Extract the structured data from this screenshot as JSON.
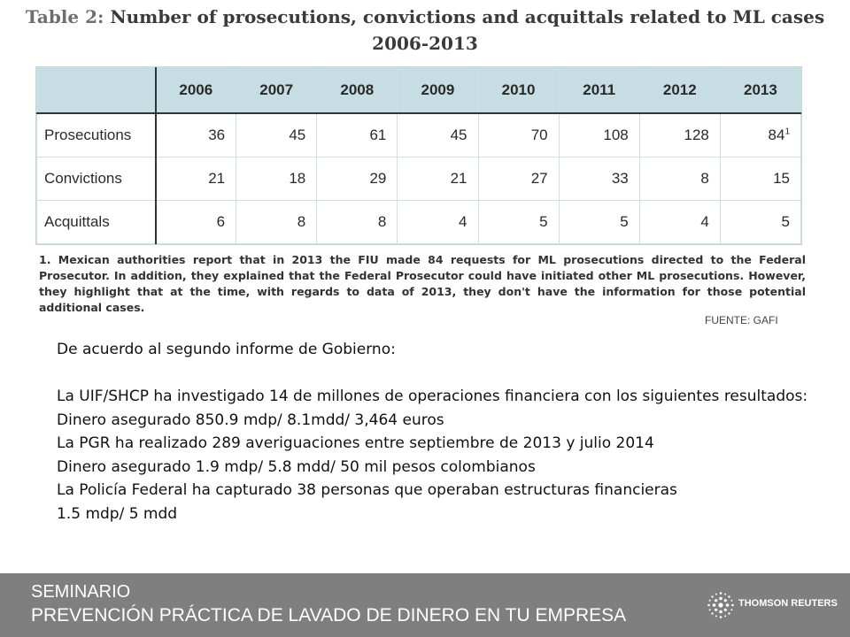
{
  "title": {
    "label": "Table 2:",
    "main": "Number of prosecutions, convictions and acquittals related to ML cases",
    "years": "2006-2013"
  },
  "table": {
    "headers": [
      "",
      "2006",
      "2007",
      "2008",
      "2009",
      "2010",
      "2011",
      "2012",
      "2013"
    ],
    "rows": [
      {
        "label": "Prosecutions",
        "values": [
          "36",
          "45",
          "61",
          "45",
          "70",
          "108",
          "128",
          "84"
        ],
        "footnote": "1"
      },
      {
        "label": "Convictions",
        "values": [
          "21",
          "18",
          "29",
          "21",
          "27",
          "33",
          "8",
          "15"
        ]
      },
      {
        "label": "Acquittals",
        "values": [
          "6",
          "8",
          "8",
          "4",
          "5",
          "5",
          "4",
          "5"
        ]
      }
    ]
  },
  "footnote": "1.   Mexican authorities report that in 2013 the FIU made 84 requests for ML prosecutions directed to the Federal Prosecutor. In addition, they explained that the Federal Prosecutor could have initiated other ML prosecutions. However, they highlight that at the time, with regards to data of 2013, they don't have the information for those potential additional cases.",
  "source": "FUENTE: GAFI",
  "body": {
    "intro": "De acuerdo al segundo informe de Gobierno:",
    "line1": "La UIF/SHCP ha investigado 14 de millones de operaciones financiera con los siguientes resultados:",
    "line2": "Dinero asegurado 850.9 mdp/ 8.1mdd/ 3,464 euros",
    "line3": "La PGR ha realizado 289 averiguaciones entre septiembre de 2013 y julio 2014",
    "line4": "Dinero asegurado 1.9 mdp/ 5.8 mdd/ 50 mil pesos colombianos",
    "line5": "La Policía Federal ha capturado 38 personas que operaban estructuras financieras",
    "line6": "1.5 mdp/ 5 mdd"
  },
  "footer": {
    "line1": "SEMINARIO",
    "line2": "PREVENCIÓN PRÁCTICA DE LAVADO DE DINERO EN TU EMPRESA",
    "brand": "THOMSON REUTERS",
    "brand_icon": "thomson-reuters-logo-icon",
    "background": "#7f7f7f"
  }
}
